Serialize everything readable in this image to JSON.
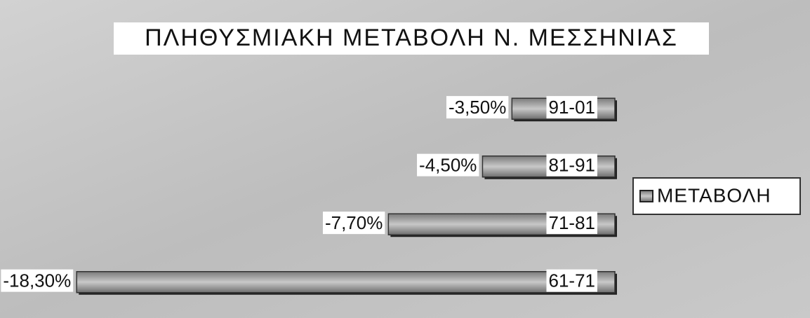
{
  "chart_data": {
    "type": "bar",
    "orientation": "horizontal",
    "title": "ΠΛΗΘΥΣΜΙΑΚΗ ΜΕΤΑΒΟΛΗ Ν. ΜΕΣΣΗΝΙΑΣ",
    "categories": [
      "91-01",
      "81-91",
      "71-81",
      "61-71"
    ],
    "series": [
      {
        "name": "ΜΕΤΑΒΟΛΗ",
        "color": "#9a9a9a",
        "values": [
          -3.5,
          -4.5,
          -7.7,
          -18.3
        ],
        "value_labels": [
          "-3,50%",
          "-4,50%",
          "-7,70%",
          "-18,30%"
        ]
      }
    ],
    "xlim": [
      -20,
      0
    ],
    "legend": "right"
  }
}
